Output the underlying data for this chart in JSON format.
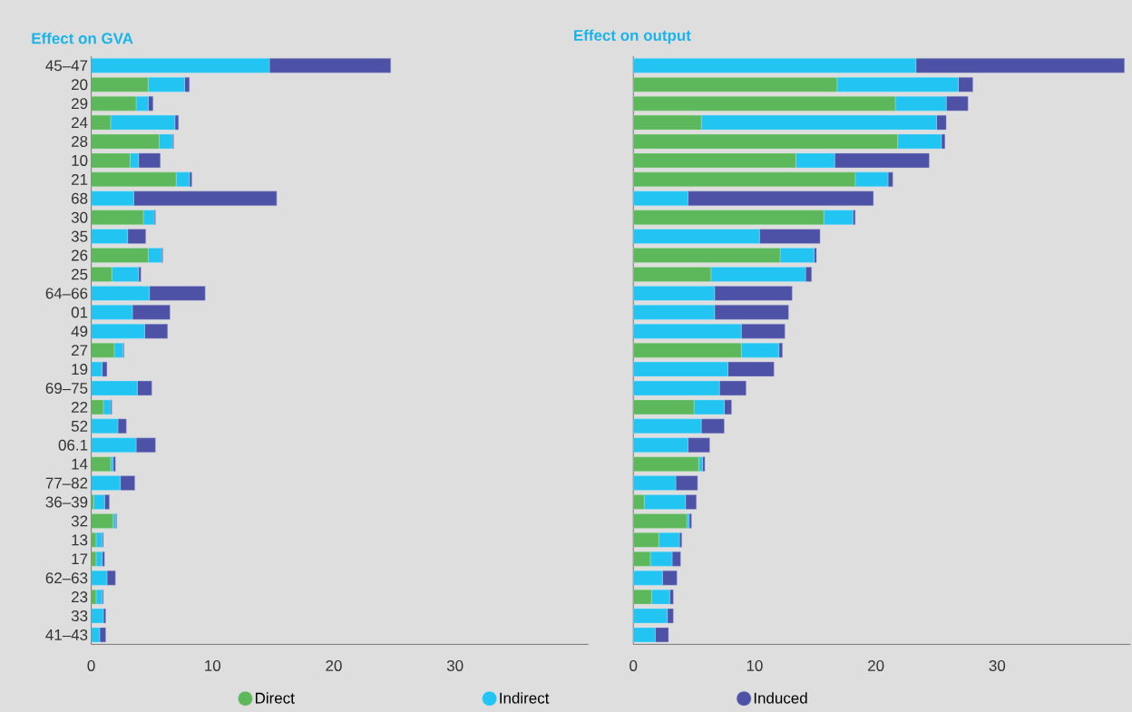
{
  "chart_data": [
    {
      "type": "bar",
      "orientation": "horizontal",
      "stacked": true,
      "title": "Effect on GVA",
      "legend": "bottom",
      "categories": [
        "45–47",
        "20",
        "29",
        "24",
        "28",
        "10",
        "21",
        "68",
        "30",
        "35",
        "26",
        "25",
        "64–66",
        "01",
        "49",
        "27",
        "19",
        "69–75",
        "22",
        "52",
        "06.1",
        "14",
        "77–82",
        "36–39",
        "32",
        "13",
        "17",
        "62–63",
        "23",
        "33",
        "41–43"
      ],
      "xlim": [
        0,
        41
      ],
      "xticks": [
        0,
        10,
        20,
        30
      ],
      "series": [
        {
          "name": "Direct",
          "color": "#5cb85a",
          "values": [
            0,
            4.7,
            3.7,
            1.6,
            5.6,
            3.2,
            7.0,
            0,
            4.3,
            0,
            4.7,
            1.7,
            0,
            0,
            0,
            1.9,
            0,
            0,
            1.0,
            0,
            0,
            1.6,
            0,
            0.2,
            1.8,
            0.4,
            0.4,
            0,
            0.4,
            0,
            0
          ]
        },
        {
          "name": "Indirect",
          "color": "#22c4f2",
          "values": [
            14.7,
            3.0,
            1.0,
            5.3,
            1.1,
            0.7,
            1.1,
            3.5,
            0.9,
            3.0,
            1.1,
            2.2,
            4.8,
            3.4,
            4.4,
            0.7,
            0.9,
            3.8,
            0.6,
            2.2,
            3.7,
            0.2,
            2.4,
            0.9,
            0.2,
            0.5,
            0.5,
            1.3,
            0.5,
            1.0,
            0.7
          ]
        },
        {
          "name": "Induced",
          "color": "#4e52a6",
          "values": [
            10.0,
            0.4,
            0.4,
            0.3,
            0.1,
            1.8,
            0.2,
            11.8,
            0.1,
            1.5,
            0.1,
            0.2,
            4.6,
            3.1,
            1.9,
            0.1,
            0.4,
            1.2,
            0.1,
            0.7,
            1.6,
            0.2,
            1.2,
            0.4,
            0.1,
            0.1,
            0.2,
            0.7,
            0.1,
            0.2,
            0.5
          ]
        }
      ]
    },
    {
      "type": "bar",
      "orientation": "horizontal",
      "stacked": true,
      "title": "Effect on output",
      "categories": [
        null,
        null,
        null,
        null,
        null,
        null,
        null,
        null,
        null,
        null,
        null,
        null,
        null,
        null,
        null,
        null,
        null,
        null,
        null,
        null,
        null,
        null,
        null,
        null,
        null,
        null,
        null,
        null,
        null,
        null,
        null
      ],
      "xlim": [
        0,
        41
      ],
      "xticks": [
        0,
        10,
        20,
        30
      ],
      "series": [
        {
          "color": "#5cb85a",
          "values": [
            0,
            16.8,
            21.6,
            5.6,
            21.8,
            13.4,
            18.3,
            0,
            15.7,
            0,
            12.1,
            6.4,
            0,
            0,
            0,
            8.9,
            0,
            0,
            5.0,
            0,
            0,
            5.4,
            0,
            0.9,
            4.4,
            2.1,
            1.4,
            0,
            1.5,
            0,
            0
          ]
        },
        {
          "color": "#22c4f2",
          "values": [
            23.3,
            10.0,
            4.2,
            19.4,
            3.6,
            3.2,
            2.7,
            4.5,
            2.4,
            10.4,
            2.8,
            7.8,
            6.7,
            6.7,
            8.9,
            3.1,
            7.8,
            7.1,
            2.5,
            5.6,
            4.5,
            0.3,
            3.5,
            3.4,
            0.2,
            1.7,
            1.8,
            2.4,
            1.5,
            2.8,
            1.8
          ]
        },
        {
          "color": "#4e52a6",
          "values": [
            17.2,
            1.2,
            1.8,
            0.8,
            0.3,
            7.8,
            0.4,
            15.3,
            0.2,
            5.0,
            0.2,
            0.5,
            6.4,
            6.1,
            3.6,
            0.3,
            3.8,
            2.2,
            0.6,
            1.9,
            1.8,
            0.2,
            1.8,
            0.9,
            0.2,
            0.2,
            0.7,
            1.2,
            0.3,
            0.5,
            1.1
          ]
        }
      ]
    }
  ]
}
